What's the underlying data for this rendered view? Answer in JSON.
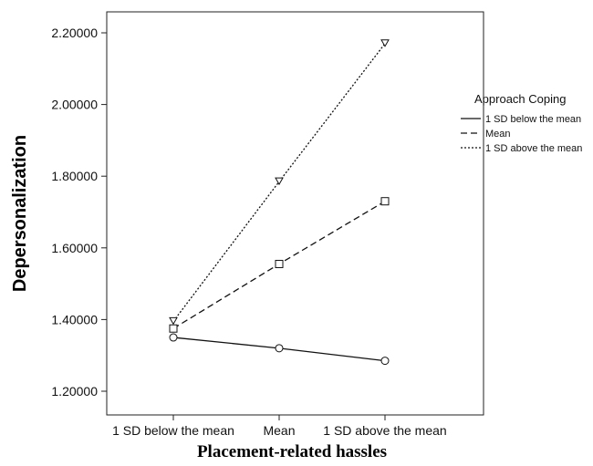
{
  "chart_data": {
    "type": "line",
    "title": "",
    "xlabel": "Placement-related hassles",
    "ylabel": "Depersonalization",
    "categories": [
      "1 SD below the mean",
      "Mean",
      "1 SD above the mean"
    ],
    "ylim": [
      1.15,
      2.25
    ],
    "yticks": [
      "1.20000",
      "1.40000",
      "1.60000",
      "1.80000",
      "2.00000",
      "2.20000"
    ],
    "grid": false,
    "legend": {
      "title": "Approach Coping",
      "placement": "right"
    },
    "series": [
      {
        "name": "1 SD below the mean",
        "values": [
          1.35,
          1.32,
          1.285
        ],
        "line": "solid",
        "marker": "circle"
      },
      {
        "name": "Mean",
        "values": [
          1.375,
          1.555,
          1.73
        ],
        "line": "dashed",
        "marker": "square"
      },
      {
        "name": "1 SD above the mean",
        "values": [
          1.395,
          1.785,
          2.17
        ],
        "line": "dotted",
        "marker": "triangle-down"
      }
    ]
  }
}
